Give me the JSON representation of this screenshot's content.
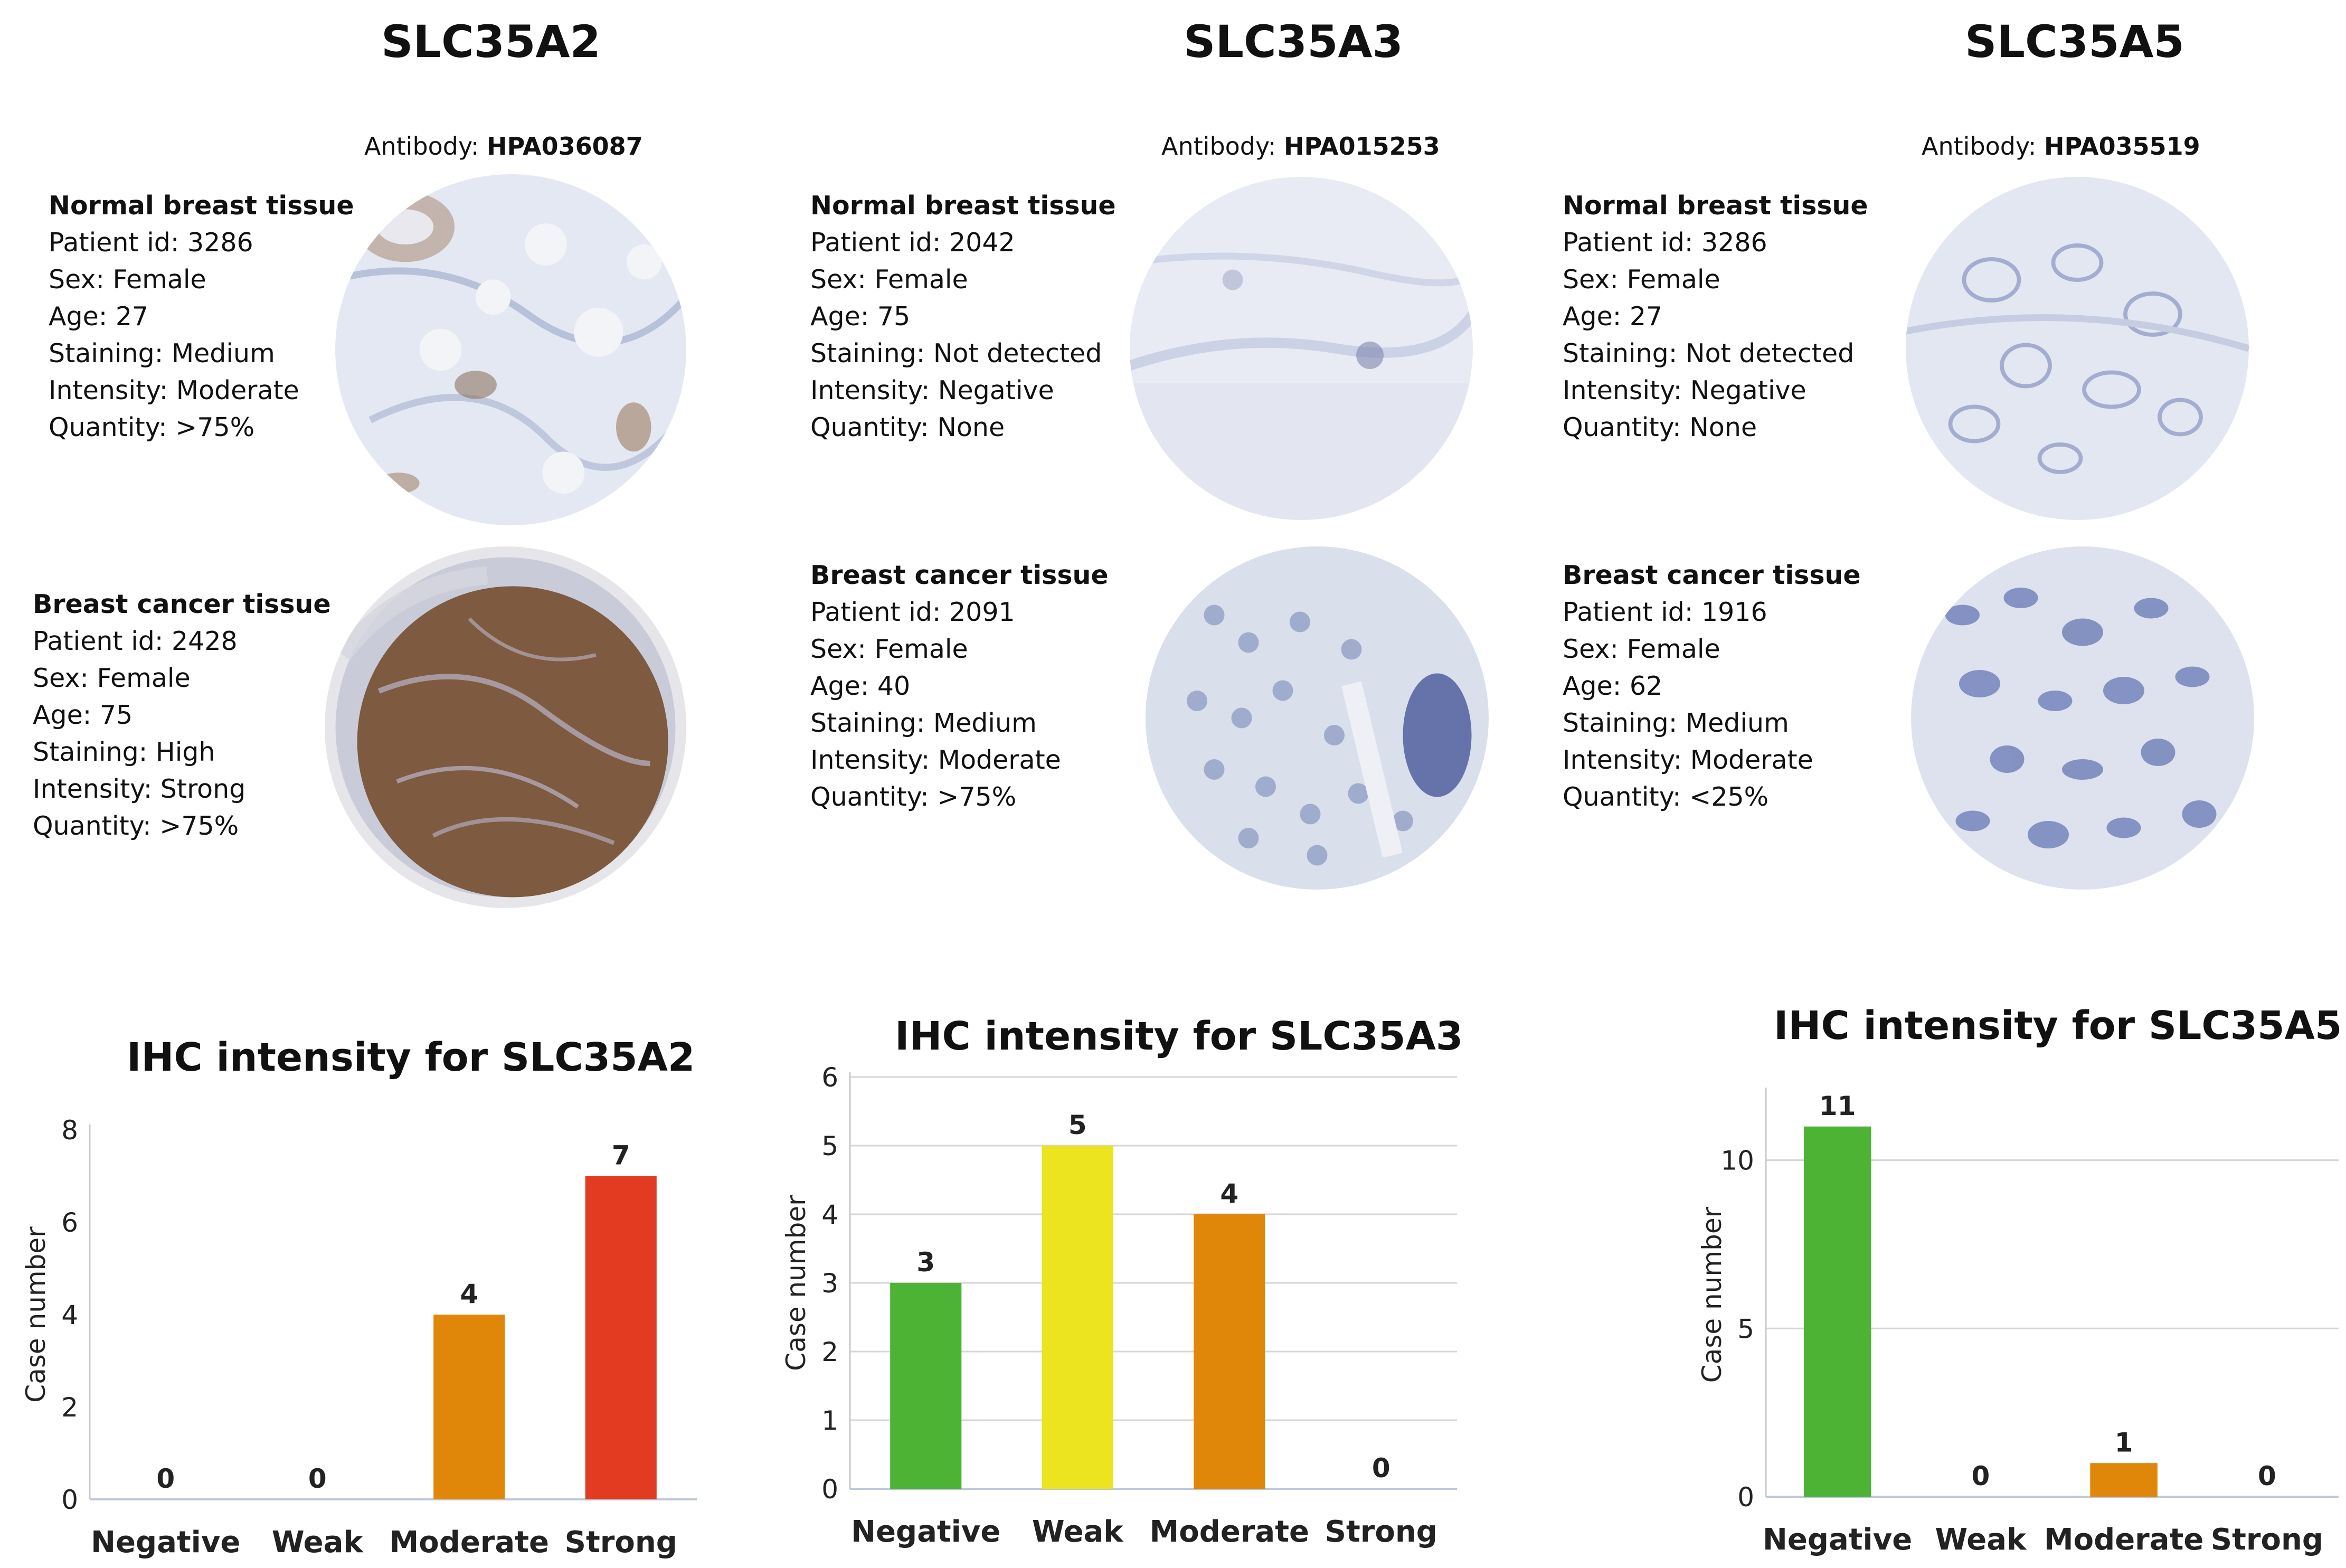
{
  "panels": [
    {
      "gene": "SLC35A2",
      "antibody_label": "Antibody:",
      "antibody_id": "HPA036087",
      "normal": {
        "heading": "Normal  breast tissue",
        "lines": [
          "Patient id: 3286",
          "Sex: Female",
          "Age: 27",
          "Staining: Medium",
          "Intensity: Moderate",
          "Quantity:  >75%"
        ]
      },
      "cancer": {
        "heading": "Breast cancer tissue",
        "lines": [
          "Patient id: 2428",
          "Sex: Female",
          "Age: 75",
          "Staining: High",
          "Intensity: Strong",
          "Quantity: >75%"
        ]
      }
    },
    {
      "gene": "SLC35A3",
      "antibody_label": "Antibody:",
      "antibody_id": "HPA015253",
      "normal": {
        "heading": "Normal  breast tissue",
        "lines": [
          "Patient id: 2042",
          "Sex: Female",
          "Age: 75",
          "Staining: Not detected",
          "Intensity: Negative",
          "Quantity: None"
        ]
      },
      "cancer": {
        "heading": "Breast cancer tissue",
        "lines": [
          "Patient id: 2091",
          "Sex: Female",
          "Age: 40",
          "Staining: Medium",
          "Intensity: Moderate",
          "Quantity: >75%"
        ]
      }
    },
    {
      "gene": "SLC35A5",
      "antibody_label": "Antibody:",
      "antibody_id": "HPA035519",
      "normal": {
        "heading": "Normal  breast tissue",
        "lines": [
          "Patient id: 3286",
          "Sex: Female",
          "Age: 27",
          "Staining: Not detected",
          "Intensity: Negative",
          "Quantity: None"
        ]
      },
      "cancer": {
        "heading": "Breast cancer tissue",
        "lines": [
          "Patient id: 1916",
          "Sex: Female",
          "Age: 62",
          "Staining: Medium",
          "Intensity: Moderate",
          "Quantity: <25%"
        ]
      }
    }
  ],
  "colors": {
    "Negative": "#4db335",
    "Weak": "#ebe41e",
    "Moderate": "#e0870a",
    "Strong": "#e23b22",
    "grid": "#d6d6d6"
  },
  "chart_data": [
    {
      "type": "bar",
      "title": "IHC intensity for SLC35A2",
      "categories": [
        "Negative",
        "Weak",
        "Moderate",
        "Strong"
      ],
      "values": [
        0,
        0,
        4,
        7
      ],
      "xlabel": "",
      "ylabel": "Case number",
      "ylim": [
        0,
        8
      ],
      "yticks": [
        0,
        2,
        4,
        6,
        8
      ],
      "grid": false
    },
    {
      "type": "bar",
      "title": "IHC intensity for SLC35A3",
      "categories": [
        "Negative",
        "Weak",
        "Moderate",
        "Strong"
      ],
      "values": [
        3,
        5,
        4,
        0
      ],
      "xlabel": "",
      "ylabel": "Case number",
      "ylim": [
        0,
        6
      ],
      "yticks": [
        0,
        1,
        2,
        3,
        4,
        5,
        6
      ],
      "grid": true
    },
    {
      "type": "bar",
      "title": "IHC intensity for SLC35A5",
      "categories": [
        "Negative",
        "Weak",
        "Moderate",
        "Strong"
      ],
      "values": [
        11,
        0,
        1,
        0
      ],
      "xlabel": "",
      "ylabel": "Case number",
      "ylim": [
        0,
        12
      ],
      "yticks": [
        0,
        5,
        10
      ],
      "grid": true
    }
  ]
}
